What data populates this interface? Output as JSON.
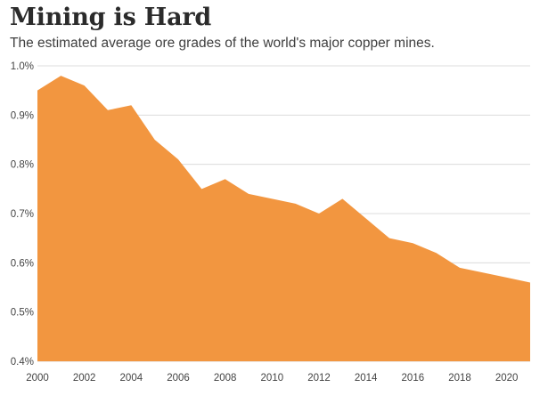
{
  "header": {
    "title": "Mining is Hard",
    "subtitle": "The estimated average ore grades of the world's major copper mines."
  },
  "chart_data": {
    "type": "area",
    "title": "Mining is Hard",
    "subtitle": "The estimated average ore grades of the world's major copper mines.",
    "xlabel": "",
    "ylabel": "",
    "x": [
      2000,
      2001,
      2002,
      2003,
      2004,
      2005,
      2006,
      2007,
      2008,
      2009,
      2010,
      2011,
      2012,
      2013,
      2014,
      2015,
      2016,
      2017,
      2018,
      2019,
      2020,
      2021
    ],
    "series": [
      {
        "values": [
          0.95,
          0.98,
          0.96,
          0.91,
          0.92,
          0.85,
          0.81,
          0.75,
          0.77,
          0.74,
          0.73,
          0.72,
          0.7,
          0.73,
          0.69,
          0.65,
          0.64,
          0.62,
          0.59,
          0.58,
          0.57,
          0.56
        ]
      }
    ],
    "ylim": [
      0.4,
      1.0
    ],
    "xlim": [
      2000,
      2021
    ],
    "x_ticks": [
      2000,
      2002,
      2004,
      2006,
      2008,
      2010,
      2012,
      2014,
      2016,
      2018,
      2020
    ],
    "x_tick_labels": [
      "2000",
      "2002",
      "2004",
      "2006",
      "2008",
      "2010",
      "2012",
      "2014",
      "2016",
      "2018",
      "2020"
    ],
    "y_ticks": [
      0.4,
      0.5,
      0.6,
      0.7,
      0.8,
      0.9,
      1.0
    ],
    "y_tick_labels": [
      "0.4%",
      "0.5%",
      "0.6%",
      "0.7%",
      "0.8%",
      "0.9%",
      "1.0%"
    ],
    "grid": "horizontal",
    "colors": {
      "area": "#f29640",
      "grid": "#dcdcdc"
    }
  }
}
